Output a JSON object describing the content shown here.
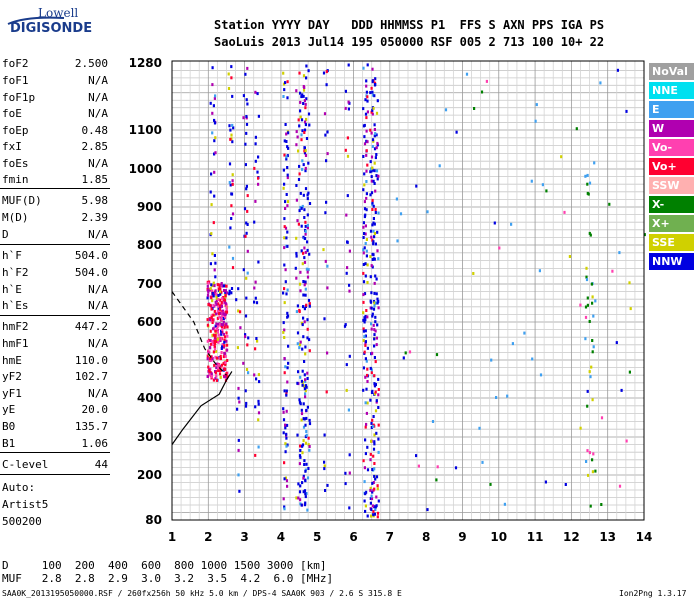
{
  "logo": {
    "line1": "Lowell",
    "line2": "DIGISONDE"
  },
  "header": {
    "line1": "Station YYYY DAY   DDD HHMMSS P1  FFS S AXN PPS IGA PS",
    "line2": "SaoLuis 2013 Jul14 195 050000 RSF 005 2 713 100 10+ 22"
  },
  "params": [
    {
      "name": "foF2",
      "value": "2.500"
    },
    {
      "name": "foF1",
      "value": "N/A"
    },
    {
      "name": "foF1p",
      "value": "N/A"
    },
    {
      "name": "foE",
      "value": "N/A"
    },
    {
      "name": "foEp",
      "value": "0.48"
    },
    {
      "name": "fxI",
      "value": "2.85"
    },
    {
      "name": "foEs",
      "value": "N/A"
    },
    {
      "name": "fmin",
      "value": "1.85"
    },
    {
      "name": "MUF(D)",
      "value": "5.98"
    },
    {
      "name": "M(D)",
      "value": "2.39"
    },
    {
      "name": "D",
      "value": "N/A"
    },
    {
      "name": "h`F",
      "value": "504.0"
    },
    {
      "name": "h`F2",
      "value": "504.0"
    },
    {
      "name": "h`E",
      "value": "N/A"
    },
    {
      "name": "h`Es",
      "value": "N/A"
    },
    {
      "name": "hmF2",
      "value": "447.2"
    },
    {
      "name": "hmF1",
      "value": "N/A"
    },
    {
      "name": "hmE",
      "value": "110.0"
    },
    {
      "name": "yF2",
      "value": "102.7"
    },
    {
      "name": "yF1",
      "value": "N/A"
    },
    {
      "name": "yE",
      "value": "20.0"
    },
    {
      "name": "B0",
      "value": "135.7"
    },
    {
      "name": "B1",
      "value": "1.06"
    },
    {
      "name": "C-level",
      "value": "44"
    }
  ],
  "auto": {
    "line1": "Auto:",
    "line2": "Artist5",
    "line3": "500200"
  },
  "legend": [
    {
      "label": "NoVal",
      "color": "#a0a0a0"
    },
    {
      "label": "NNE",
      "color": "#00e0f0"
    },
    {
      "label": "E",
      "color": "#3fa0f0"
    },
    {
      "label": "W",
      "color": "#b000b0"
    },
    {
      "label": "Vo-",
      "color": "#ff40b0"
    },
    {
      "label": "Vo+",
      "color": "#ff0030"
    },
    {
      "label": "SSW",
      "color": "#ffb0b0"
    },
    {
      "label": "X-",
      "color": "#008000"
    },
    {
      "label": "X+",
      "color": "#70b050"
    },
    {
      "label": "SSE",
      "color": "#d0d000"
    },
    {
      "label": "NNW",
      "color": "#0000e0"
    }
  ],
  "muf_table": {
    "line1": "D     100  200  400  600  800 1000 1500 3000 [km]",
    "line2": "MUF   2.8  2.8  2.9  3.0  3.2  3.5  4.2  6.0 [MHz]"
  },
  "footer": {
    "left": "SAA0K_2013195050000.RSF / 260fx256h 50 kHz 5.0 km / DPS-4 SAA0K 903 / 2.6 S 315.8 E",
    "right": "Ion2Png 1.3.17"
  },
  "chart_data": {
    "type": "scatter",
    "xlim": [
      1,
      14
    ],
    "ylim": [
      80,
      1280
    ],
    "x_ticks": [
      "1",
      "2",
      "3",
      "4",
      "5",
      "6",
      "7",
      "8",
      "9",
      "10",
      "11",
      "12",
      "13",
      "14"
    ],
    "y_ticks": [
      "80",
      "200",
      "300",
      "400",
      "500",
      "600",
      "700",
      "800",
      "900",
      "1000",
      "1100",
      "1280"
    ],
    "grid": true,
    "legend_position": "right",
    "series": [
      {
        "name": "NNW",
        "color": "#0000e0"
      },
      {
        "name": "W",
        "color": "#b000b0"
      },
      {
        "name": "Vo+",
        "color": "#ff0030"
      },
      {
        "name": "Vo-",
        "color": "#ff40b0"
      },
      {
        "name": "E",
        "color": "#3fa0f0"
      },
      {
        "name": "SSE",
        "color": "#d0d000"
      },
      {
        "name": "X-",
        "color": "#008000"
      }
    ],
    "traces": {
      "dashed_profile": [
        [
          1.0,
          680
        ],
        [
          1.6,
          600
        ],
        [
          1.9,
          530
        ],
        [
          2.2,
          490
        ],
        [
          2.5,
          460
        ]
      ],
      "solid_profile": [
        [
          1.0,
          280
        ],
        [
          1.3,
          320
        ],
        [
          1.8,
          380
        ],
        [
          2.3,
          410
        ],
        [
          2.5,
          447
        ],
        [
          2.65,
          470
        ]
      ]
    }
  }
}
